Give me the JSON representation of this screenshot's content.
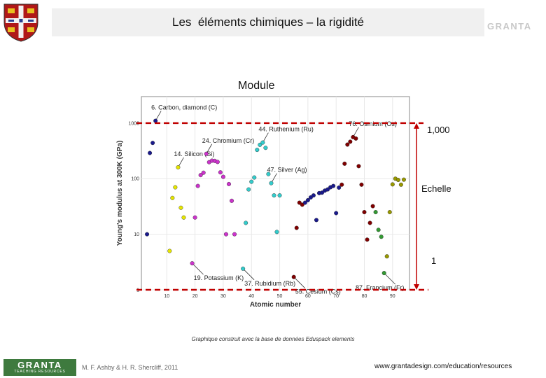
{
  "header": {
    "title": "Les  éléments chimiques – la rigidité",
    "logo_text": "GRANTA"
  },
  "module_label": "Module",
  "annotations": {
    "top_value": "1,000",
    "scale_label": "Echelle",
    "bottom_value": "1",
    "accent_color": "#c00000"
  },
  "caption": "Graphique construit avec la base de données Eduspack elements",
  "footer": {
    "logo_text": "GRANTA",
    "logo_subtitle": "TEACHING RESOURCES",
    "authors": "M. F. Ashby & H. R. Shercliff, 2011",
    "url": "www.grantadesign.com/education/resources"
  },
  "chart_data": {
    "type": "scatter",
    "xlabel": "Atomic number",
    "ylabel": "Young's modulus at 300K (GPa)",
    "xlim": [
      1,
      96
    ],
    "ylim": [
      1,
      3000
    ],
    "y_scale": "log",
    "grid": true,
    "x_ticks": [
      10,
      20,
      30,
      40,
      50,
      60,
      70,
      80,
      90
    ],
    "y_ticks": [
      {
        "value": 1,
        "label": "1"
      },
      {
        "value": 10,
        "label": "10"
      },
      {
        "value": 100,
        "label": "100"
      },
      {
        "value": 1000,
        "label": "1000"
      }
    ],
    "series": [
      {
        "color": "#1a1a8c",
        "points": [
          [
            3,
            10
          ],
          [
            4,
            290
          ],
          [
            5,
            440
          ],
          [
            6,
            1100
          ]
        ]
      },
      {
        "color": "#e6e600",
        "points": [
          [
            11,
            5
          ],
          [
            12,
            45
          ],
          [
            13,
            70
          ],
          [
            14,
            160
          ],
          [
            15,
            30
          ],
          [
            16,
            20
          ]
        ]
      },
      {
        "color": "#cc33cc",
        "points": [
          [
            19,
            3
          ],
          [
            20,
            20
          ],
          [
            21,
            74
          ],
          [
            22,
            116
          ],
          [
            23,
            128
          ],
          [
            24,
            280
          ],
          [
            25,
            198
          ],
          [
            26,
            211
          ],
          [
            27,
            209
          ],
          [
            28,
            200
          ],
          [
            29,
            130
          ],
          [
            30,
            108
          ]
        ]
      },
      {
        "color": "#cc33cc",
        "points": [
          [
            31,
            10
          ],
          [
            32,
            80
          ],
          [
            33,
            40
          ],
          [
            34,
            10
          ]
        ]
      },
      {
        "color": "#33cccc",
        "points": [
          [
            37,
            2.4
          ],
          [
            38,
            16
          ],
          [
            39,
            64
          ],
          [
            40,
            88
          ],
          [
            41,
            105
          ],
          [
            42,
            330
          ],
          [
            43,
            407
          ],
          [
            44,
            447
          ],
          [
            45,
            359
          ],
          [
            46,
            121
          ],
          [
            47,
            83
          ],
          [
            48,
            50
          ],
          [
            49,
            11
          ],
          [
            50,
            50
          ]
        ]
      },
      {
        "color": "#800000",
        "points": [
          [
            55,
            1.7
          ],
          [
            56,
            13
          ],
          [
            57,
            37
          ],
          [
            58,
            34
          ]
        ]
      },
      {
        "color": "#1a1a8c",
        "points": [
          [
            59,
            37
          ],
          [
            60,
            41
          ],
          [
            61,
            46
          ],
          [
            62,
            50
          ],
          [
            63,
            18
          ],
          [
            64,
            55
          ],
          [
            65,
            56
          ],
          [
            66,
            61
          ],
          [
            67,
            64
          ],
          [
            68,
            70
          ],
          [
            69,
            74
          ],
          [
            70,
            24
          ],
          [
            71,
            69
          ]
        ]
      },
      {
        "color": "#800000",
        "points": [
          [
            72,
            78
          ],
          [
            73,
            186
          ],
          [
            74,
            411
          ],
          [
            75,
            463
          ],
          [
            76,
            560
          ],
          [
            77,
            528
          ],
          [
            78,
            168
          ],
          [
            79,
            78
          ],
          [
            80,
            25
          ],
          [
            81,
            8
          ],
          [
            82,
            16
          ],
          [
            83,
            32
          ]
        ]
      },
      {
        "color": "#339933",
        "points": [
          [
            84,
            25
          ],
          [
            85,
            12
          ],
          [
            86,
            9
          ],
          [
            87,
            2
          ]
        ]
      },
      {
        "color": "#999900",
        "points": [
          [
            88,
            4
          ],
          [
            89,
            25
          ],
          [
            90,
            79
          ],
          [
            91,
            100
          ],
          [
            92,
            95
          ],
          [
            93,
            78
          ],
          [
            94,
            96
          ]
        ]
      }
    ],
    "labels": [
      {
        "text": "6. Carbon, diamond (C)",
        "x": 6,
        "y": 1100
      },
      {
        "text": "14. Silicon (Si)",
        "x": 14,
        "y": 160
      },
      {
        "text": "24. Chromium (Cr)",
        "x": 24,
        "y": 280
      },
      {
        "text": "44. Ruthenium (Ru)",
        "x": 44,
        "y": 447
      },
      {
        "text": "47. Silver (Ag)",
        "x": 47,
        "y": 83
      },
      {
        "text": "76. Osmium (Os)",
        "x": 76,
        "y": 560
      },
      {
        "text": "19. Potassium (K)",
        "x": 19,
        "y": 3
      },
      {
        "text": "37. Rubidium (Rb)",
        "x": 37,
        "y": 2.4
      },
      {
        "text": "55. Cesium (Cs)",
        "x": 55,
        "y": 1.7
      },
      {
        "text": "87. Francium (Fr)",
        "x": 87,
        "y": 2
      }
    ]
  }
}
